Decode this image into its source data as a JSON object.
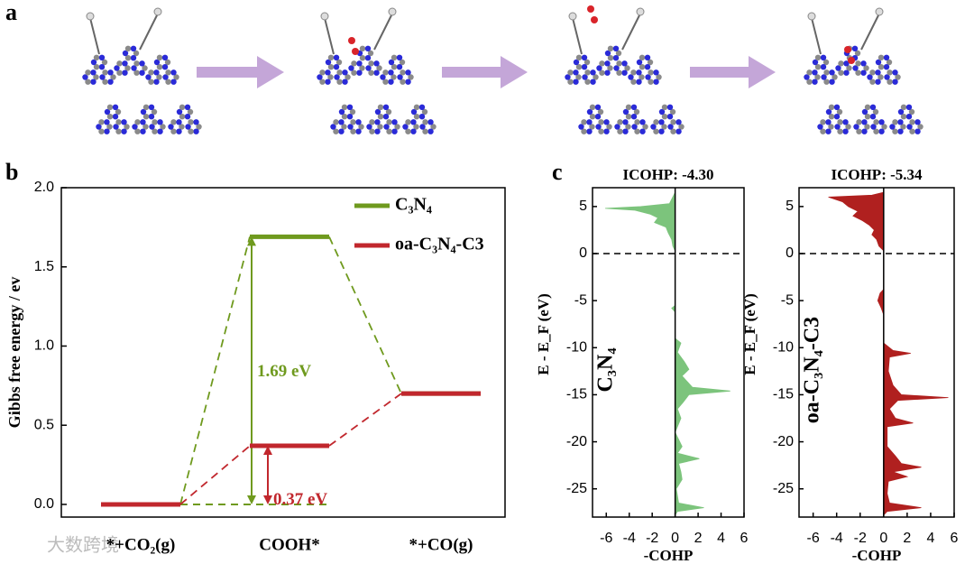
{
  "panel_a": {
    "panel": "a"
  },
  "watermark": "大数跨境",
  "chart_data": [
    {
      "type": "energy-profile",
      "panel": "b",
      "ylabel": "Gibbs free energy / ev",
      "categories": [
        "*+CO₂(g)",
        "COOH*",
        "*+CO(g)"
      ],
      "series": [
        {
          "name": "C₃N₄",
          "color": "#6f9a1e",
          "values": [
            0,
            1.69,
            0.7
          ],
          "annotation": "1.69 eV"
        },
        {
          "name": "oa-C₃N₄-C3",
          "color": "#c1272d",
          "values": [
            0,
            0.37,
            0.7
          ],
          "annotation": "0.37 eV"
        }
      ],
      "ylim": [
        -0.08,
        2.0
      ],
      "yticks": [
        {
          "value": 0,
          "label": "0.0"
        },
        0.5,
        {
          "value": 1,
          "label": "1.0"
        },
        1.5,
        {
          "value": 2,
          "label": "2.0"
        }
      ],
      "legend": "upper right"
    },
    {
      "type": "cohp",
      "panel": "c",
      "title": "ICOHP: -4.30",
      "label": "C₃N₄",
      "ylabel": "E - E_F (eV)",
      "xlabel": "-COHP",
      "color": "#7cc47c",
      "reference": 0,
      "energies": [
        6.5,
        5.3,
        5.0,
        4.8,
        4.6,
        4.2,
        3.8,
        3.3,
        2.8,
        2.2,
        1.5,
        0.8,
        0.3,
        -5.5,
        -5.8,
        -6.2,
        -9,
        -9.5,
        -10.5,
        -11.5,
        -12.3,
        -13,
        -14.2,
        -14.6,
        -15,
        -15.8,
        -16.5,
        -17.5,
        -19,
        -20.5,
        -21.2,
        -21.8,
        -22.3,
        -23.2,
        -24,
        -25,
        -26.5,
        -27,
        -27.4,
        -27.8
      ],
      "values": [
        0,
        -0.5,
        -3,
        -6.1,
        -3.5,
        -2.2,
        -1.5,
        -1.8,
        -0.8,
        -0.6,
        -0.3,
        -0.2,
        0,
        0,
        -0.3,
        0,
        0,
        0.5,
        0.2,
        0.8,
        1.2,
        0.6,
        1.5,
        4.8,
        1.2,
        0.7,
        0.2,
        0.5,
        0,
        0.6,
        0.2,
        2.1,
        0.3,
        0.5,
        0.6,
        0.1,
        0.3,
        2.5,
        0.2,
        0
      ],
      "xlim": [
        -7.2,
        6
      ],
      "xticks": [
        -6,
        -4,
        -2,
        0,
        2,
        4,
        6
      ],
      "ylim": [
        -28,
        7
      ],
      "yticks": [
        5,
        0,
        -5,
        -10,
        -15,
        -20,
        -25
      ]
    },
    {
      "type": "cohp",
      "title": "ICOHP: -5.34",
      "label": "oa-C₃N₄-C3",
      "ylabel": "E - E_F (eV)",
      "xlabel": "-COHP",
      "color": "#b0201f",
      "reference": 0,
      "energies": [
        6.5,
        6.2,
        6.0,
        5.5,
        5.0,
        4.5,
        4.0,
        3.5,
        3.0,
        2.5,
        2.0,
        1.5,
        0.8,
        0.3,
        -3.8,
        -4.2,
        -5.0,
        -5.8,
        -6.5,
        -9.5,
        -10.3,
        -10.6,
        -11,
        -12.5,
        -14,
        -15,
        -15.3,
        -15.6,
        -16.5,
        -17.5,
        -18,
        -18.4,
        -20.5,
        -21.5,
        -22.3,
        -22.7,
        -23.2,
        -23.7,
        -24.2,
        -25.5,
        -26.5,
        -27,
        -27.4,
        -27.8
      ],
      "values": [
        0,
        -1,
        -4.7,
        -3.5,
        -3.0,
        -2.2,
        -2.6,
        -1.8,
        -1.2,
        -0.8,
        -1.0,
        -0.6,
        -0.4,
        0,
        0,
        -0.3,
        -0.5,
        -0.2,
        0,
        0,
        0.8,
        2.3,
        0.5,
        0.4,
        0.8,
        1.5,
        5.5,
        1.2,
        0.5,
        1,
        2.5,
        0.3,
        0.3,
        1,
        1.5,
        3.2,
        0.8,
        2,
        0.4,
        0.3,
        0.5,
        3.2,
        0.3,
        0
      ],
      "xlim": [
        -7.2,
        6
      ],
      "xticks": [
        -6,
        -4,
        -2,
        0,
        2,
        4,
        6
      ],
      "ylim": [
        -28,
        7
      ],
      "yticks": [
        5,
        0,
        -5,
        -10,
        -15,
        -20,
        -25
      ]
    }
  ]
}
